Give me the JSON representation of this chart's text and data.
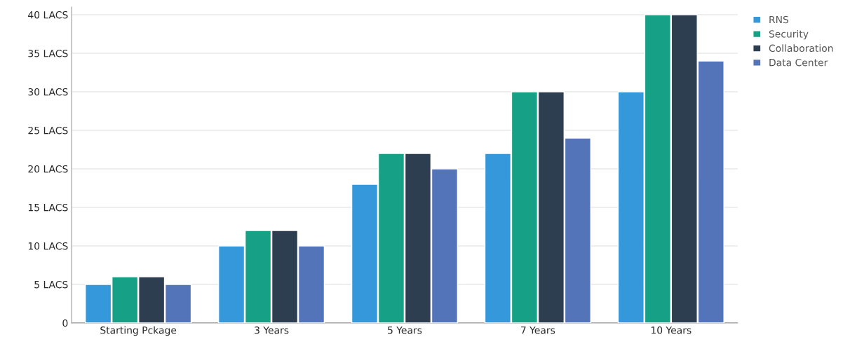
{
  "chart_data": {
    "type": "bar",
    "categories": [
      "Starting Pckage",
      "3 Years",
      "5 Years",
      "7 Years",
      "10 Years"
    ],
    "series": [
      {
        "name": "RNS",
        "color": "#3498db",
        "values": [
          5,
          10,
          18,
          22,
          30
        ]
      },
      {
        "name": "Security",
        "color": "#16a085",
        "values": [
          6,
          12,
          22,
          30,
          40
        ]
      },
      {
        "name": "Collaboration",
        "color": "#2c3e50",
        "values": [
          6,
          12,
          22,
          30,
          40
        ]
      },
      {
        "name": "Data Center",
        "color": "#5474b9",
        "values": [
          5,
          10,
          20,
          24,
          34
        ]
      }
    ],
    "ylim": [
      0,
      41
    ],
    "yticks": [
      0,
      {
        "value": 5,
        "label": "5 LACS"
      },
      {
        "value": 10,
        "label": "10 LACS"
      },
      {
        "value": 15,
        "label": "15 LACS"
      },
      {
        "value": 20,
        "label": "20 LACS"
      },
      {
        "value": 25,
        "label": "25 LACS"
      },
      {
        "value": 30,
        "label": "30 LACS"
      },
      {
        "value": 35,
        "label": "35 LACS"
      },
      {
        "value": 40,
        "label": "40 LACS"
      }
    ],
    "grid": "y",
    "legend": "top right"
  }
}
